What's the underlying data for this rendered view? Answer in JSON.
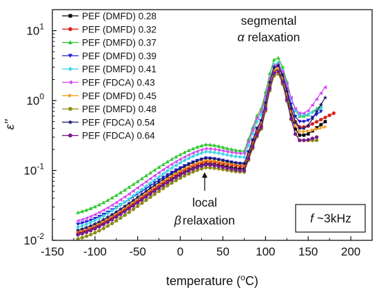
{
  "chart_data": {
    "type": "line",
    "xlabel": "temperature (",
    "xlabel_sup": "o",
    "xlabel_tail": "C)",
    "ylabel": "ε''",
    "xlim": [
      -150,
      225
    ],
    "ylim": [
      0.01,
      20
    ],
    "y_scale": "log",
    "grid": false,
    "legend_position": "top-left",
    "x_ticks": [
      "-150",
      "-100",
      "-50",
      "0",
      "50",
      "100",
      "150",
      "200"
    ],
    "y_ticks": [
      {
        "base": "10",
        "exp": "-2",
        "value": 0.01
      },
      {
        "base": "10",
        "exp": "-1",
        "value": 0.1
      },
      {
        "base": "10",
        "exp": "0",
        "value": 1
      },
      {
        "base": "10",
        "exp": "1",
        "value": 10
      }
    ],
    "annotations": {
      "alpha_line1": "segmental",
      "alpha_sym": "α",
      "alpha_word": " relaxation",
      "beta_line1": "local",
      "beta_sym": "β",
      "beta_word": "relaxation",
      "freq_sym": "f",
      "freq_rest": " ~3kHz"
    },
    "series": [
      {
        "name": "PEF (DMFD) 0.28",
        "color": "#000000",
        "marker": "square",
        "y_low": 0.0125,
        "y_plateau": 0.125,
        "y_min": 0.105,
        "y_peak": 2.9,
        "y_dip": 0.32,
        "y_end": 0.5,
        "x_end": 170
      },
      {
        "name": "PEF (DMFD) 0.32",
        "color": "#d9241c",
        "marker": "circle",
        "y_low": 0.013,
        "y_plateau": 0.135,
        "y_min": 0.115,
        "y_peak": 3.0,
        "y_dip": 0.42,
        "y_end": 0.66,
        "x_end": 180
      },
      {
        "name": "PEF (DMFD) 0.37",
        "color": "#2ec82e",
        "marker": "triangle-up",
        "y_low": 0.025,
        "y_plateau": 0.235,
        "y_min": 0.19,
        "y_peak": 4.2,
        "y_dip": 0.6,
        "y_end": 0.85,
        "x_end": 165
      },
      {
        "name": "PEF (DMFD) 0.39",
        "color": "#1f1fcc",
        "marker": "triangle-down",
        "y_low": 0.017,
        "y_plateau": 0.15,
        "y_min": 0.125,
        "y_peak": 3.2,
        "y_dip": 0.5,
        "y_end": 0.7,
        "x_end": 165
      },
      {
        "name": "PEF (DMFD) 0.41",
        "color": "#3fd6e6",
        "marker": "diamond",
        "y_low": 0.0155,
        "y_plateau": 0.185,
        "y_min": 0.155,
        "y_peak": 3.6,
        "y_dip": 0.62,
        "y_end": 0.78,
        "x_end": 165
      },
      {
        "name": "PEF (FDCA) 0.43",
        "color": "#d24cf0",
        "marker": "triangle-left",
        "y_low": 0.019,
        "y_plateau": 0.205,
        "y_min": 0.175,
        "y_peak": 3.4,
        "y_dip": 0.66,
        "y_end": 1.55,
        "x_end": 170
      },
      {
        "name": "PEF (DMFD) 0.45",
        "color": "#f0a020",
        "marker": "triangle-right",
        "y_low": 0.0135,
        "y_plateau": 0.14,
        "y_min": 0.12,
        "y_peak": 3.0,
        "y_dip": 0.36,
        "y_end": 0.42,
        "x_end": 170
      },
      {
        "name": "PEF (DMFD) 0.48",
        "color": "#8c8c14",
        "marker": "circle",
        "y_low": 0.0105,
        "y_plateau": 0.11,
        "y_min": 0.095,
        "y_peak": 2.5,
        "y_dip": 0.27,
        "y_end": 0.27,
        "x_end": 160
      },
      {
        "name": "PEF (FDCA) 0.54",
        "color": "#1a1a70",
        "marker": "star",
        "y_low": 0.014,
        "y_plateau": 0.15,
        "y_min": 0.125,
        "y_peak": 3.3,
        "y_dip": 0.4,
        "y_end": 1.1,
        "x_end": 170
      },
      {
        "name": "PEF (FDCA) 0.64",
        "color": "#7a1a8c",
        "marker": "hexagon",
        "y_low": 0.012,
        "y_plateau": 0.12,
        "y_min": 0.1,
        "y_peak": 2.7,
        "y_dip": 0.27,
        "y_end": 0.3,
        "x_end": 160
      }
    ]
  }
}
